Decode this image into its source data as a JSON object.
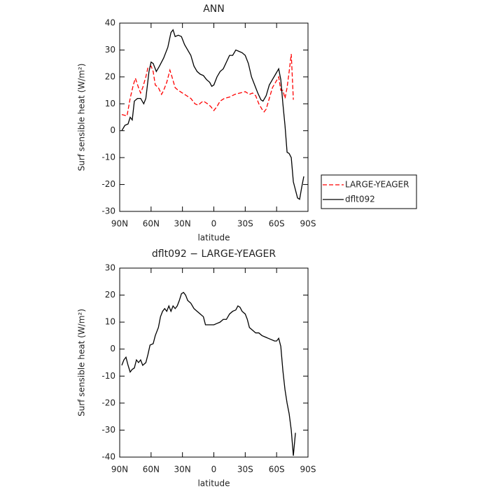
{
  "chart_data": [
    {
      "type": "line",
      "title": "ANN",
      "xlabel": "latitude",
      "ylabel": "Surf sensible heat (W/m²)",
      "xlim": [
        90,
        -90
      ],
      "ylim": [
        -30,
        40
      ],
      "xticks": [
        {
          "value": 90,
          "label": "90N"
        },
        {
          "value": 60,
          "label": "60N"
        },
        {
          "value": 30,
          "label": "30N"
        },
        0,
        {
          "value": -30,
          "label": "30S"
        },
        {
          "value": -60,
          "label": "60S"
        },
        {
          "value": -90,
          "label": "90S"
        }
      ],
      "yticks": [
        -30,
        -20,
        -10,
        0,
        10,
        20,
        30,
        40
      ],
      "legend": "right",
      "series": [
        {
          "name": "LARGE-YEAGER",
          "color": "#ff0000",
          "dash": true,
          "x": [
            88,
            83,
            80,
            77,
            75,
            72,
            70,
            68,
            65,
            63,
            60,
            58,
            56,
            53,
            50,
            48,
            45,
            42,
            40,
            37,
            34,
            30,
            26,
            22,
            18,
            15,
            12,
            10,
            6,
            3,
            1,
            0,
            -3,
            -6,
            -10,
            -15,
            -20,
            -25,
            -30,
            -34,
            -37,
            -40,
            -43,
            -46,
            -48,
            -50,
            -53,
            -56,
            -59,
            -62,
            -64,
            -66,
            -68,
            -70,
            -72,
            -74,
            -76
          ],
          "values": [
            6,
            5.5,
            12,
            17,
            19.5,
            16,
            14,
            16,
            20,
            23.5,
            24,
            22,
            17,
            16,
            13.5,
            15,
            18,
            22.5,
            20,
            16,
            15,
            14,
            13,
            12,
            10,
            9.5,
            10.5,
            11,
            10,
            9,
            8,
            7.5,
            9,
            11,
            12,
            12.5,
            13.5,
            14,
            14.5,
            13.5,
            14,
            13,
            10,
            8,
            7,
            8,
            12,
            16,
            18,
            20,
            15,
            15,
            12,
            16,
            22,
            28.5,
            11.5
          ]
        },
        {
          "name": "dflt092",
          "color": "#000000",
          "dash": false,
          "x": [
            88,
            85,
            82,
            80,
            78,
            76,
            73,
            70,
            67,
            65,
            62,
            60,
            58,
            55,
            52,
            48,
            44,
            41,
            39,
            37,
            34,
            31,
            28,
            25,
            22,
            19,
            16,
            13,
            10,
            7,
            4,
            2,
            0,
            -3,
            -6,
            -9,
            -12,
            -15,
            -18,
            -21,
            -24,
            -27,
            -30,
            -33,
            -36,
            -39,
            -42,
            -45,
            -47,
            -50,
            -53,
            -56,
            -59,
            -62,
            -64,
            -66,
            -68,
            -70,
            -72,
            -74,
            -76,
            -78,
            -80,
            -82,
            -84,
            -86
          ],
          "values": [
            0,
            2,
            2.5,
            5,
            4,
            11,
            12,
            12,
            10,
            12,
            22,
            25.5,
            25,
            22,
            24,
            27,
            31,
            36.5,
            37.5,
            35,
            35.5,
            35,
            32,
            30,
            28,
            24,
            22,
            21,
            20.5,
            19,
            18,
            16.5,
            17,
            20,
            22,
            23,
            25.5,
            28,
            28,
            30,
            29.5,
            29,
            28,
            25,
            20,
            17,
            14,
            11.5,
            11,
            13,
            17,
            19,
            21,
            23,
            19,
            10,
            2,
            -8,
            -8.5,
            -10,
            -19,
            -22,
            -25,
            -25.5,
            -21,
            -17
          ]
        }
      ]
    },
    {
      "type": "line",
      "title": "dflt092 − LARGE-YEAGER",
      "xlabel": "latitude",
      "ylabel": "Surf sensible heat (W/m²)",
      "xlim": [
        90,
        -90
      ],
      "ylim": [
        -40,
        30
      ],
      "xticks": [
        {
          "value": 90,
          "label": "90N"
        },
        {
          "value": 60,
          "label": "60N"
        },
        {
          "value": 30,
          "label": "30N"
        },
        0,
        {
          "value": -30,
          "label": "30S"
        },
        {
          "value": -60,
          "label": "60S"
        },
        {
          "value": -90,
          "label": "90S"
        }
      ],
      "yticks": [
        -40,
        -30,
        -20,
        -10,
        0,
        10,
        20,
        30
      ],
      "series": [
        {
          "color": "#000000",
          "dash": false,
          "x": [
            88,
            86,
            84,
            82,
            80,
            78,
            76,
            74,
            72,
            70,
            68,
            65,
            63,
            61,
            58,
            56,
            53,
            51,
            49,
            47,
            45,
            43,
            41,
            39,
            37,
            35,
            33,
            31,
            29,
            27,
            25,
            22,
            19,
            16,
            13,
            10,
            8,
            5,
            2,
            0,
            -3,
            -6,
            -9,
            -12,
            -15,
            -18,
            -21,
            -23,
            -25,
            -27,
            -30,
            -32,
            -34,
            -37,
            -40,
            -43,
            -46,
            -49,
            -52,
            -55,
            -58,
            -60,
            -62,
            -64,
            -66,
            -68,
            -70,
            -72,
            -74,
            -76,
            -78
          ],
          "values": [
            -6,
            -4,
            -3,
            -6,
            -8.5,
            -7.5,
            -7,
            -4,
            -5,
            -4,
            -6,
            -5,
            -2,
            1.5,
            2,
            5,
            8,
            12,
            14,
            15,
            14,
            16,
            14,
            16,
            15,
            16,
            18,
            20.5,
            21,
            20,
            18,
            17,
            15,
            14,
            13,
            12,
            9,
            9,
            9,
            9,
            9.5,
            10,
            11,
            11,
            13,
            14,
            14.5,
            16,
            15.5,
            14,
            13,
            11,
            8,
            7,
            6,
            6,
            5,
            4.5,
            4,
            3.5,
            3,
            3,
            4,
            1,
            -8,
            -15,
            -20,
            -24,
            -30,
            -39.5,
            -31
          ]
        }
      ]
    }
  ]
}
